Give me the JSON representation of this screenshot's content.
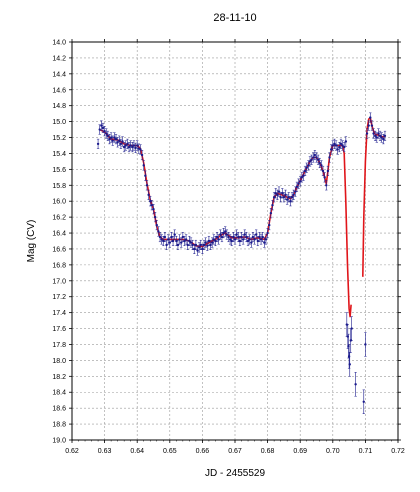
{
  "chart_data": {
    "type": "scatter",
    "title": "28-11-10",
    "xlabel": "JD - 2455529",
    "ylabel": "Mag (CV)",
    "xlim": [
      0.62,
      0.72
    ],
    "ylim": [
      19.0,
      14.0
    ],
    "y_inverted": true,
    "x_ticks": [
      "0.62",
      "0.63",
      "0.64",
      "0.65",
      "0.66",
      "0.67",
      "0.68",
      "0.69",
      "0.70",
      "0.71",
      "0.72"
    ],
    "y_ticks": [
      "14.0",
      "14.2",
      "14.4",
      "14.6",
      "14.8",
      "15.0",
      "15.2",
      "15.4",
      "15.6",
      "15.8",
      "16.0",
      "16.2",
      "16.4",
      "16.6",
      "16.8",
      "17.0",
      "17.2",
      "17.4",
      "17.6",
      "17.8",
      "18.0",
      "18.2",
      "18.4",
      "18.6",
      "18.8",
      "19.0"
    ],
    "grid": true,
    "series": [
      {
        "kind": "points_with_errorbars",
        "color": "#1a1a8c",
        "points": [
          [
            0.628,
            15.28
          ],
          [
            0.6285,
            15.1
          ],
          [
            0.629,
            15.05
          ],
          [
            0.6295,
            15.08
          ],
          [
            0.63,
            15.12
          ],
          [
            0.6305,
            15.15
          ],
          [
            0.631,
            15.18
          ],
          [
            0.6315,
            15.22
          ],
          [
            0.632,
            15.2
          ],
          [
            0.6325,
            15.24
          ],
          [
            0.633,
            15.2
          ],
          [
            0.6335,
            15.22
          ],
          [
            0.634,
            15.26
          ],
          [
            0.6345,
            15.24
          ],
          [
            0.635,
            15.28
          ],
          [
            0.6355,
            15.25
          ],
          [
            0.636,
            15.32
          ],
          [
            0.6365,
            15.3
          ],
          [
            0.637,
            15.28
          ],
          [
            0.6375,
            15.32
          ],
          [
            0.638,
            15.3
          ],
          [
            0.6385,
            15.32
          ],
          [
            0.639,
            15.3
          ],
          [
            0.6395,
            15.33
          ],
          [
            0.64,
            15.3
          ],
          [
            0.6405,
            15.34
          ],
          [
            0.641,
            15.35
          ],
          [
            0.6415,
            15.42
          ],
          [
            0.642,
            15.55
          ],
          [
            0.6425,
            15.68
          ],
          [
            0.643,
            15.8
          ],
          [
            0.6435,
            15.92
          ],
          [
            0.644,
            16.0
          ],
          [
            0.6445,
            16.05
          ],
          [
            0.645,
            16.1
          ],
          [
            0.6455,
            16.2
          ],
          [
            0.646,
            16.3
          ],
          [
            0.6465,
            16.38
          ],
          [
            0.647,
            16.45
          ],
          [
            0.6475,
            16.48
          ],
          [
            0.648,
            16.5
          ],
          [
            0.6485,
            16.45
          ],
          [
            0.649,
            16.55
          ],
          [
            0.6495,
            16.48
          ],
          [
            0.65,
            16.52
          ],
          [
            0.6505,
            16.45
          ],
          [
            0.651,
            16.5
          ],
          [
            0.6515,
            16.42
          ],
          [
            0.652,
            16.5
          ],
          [
            0.6525,
            16.55
          ],
          [
            0.653,
            16.48
          ],
          [
            0.6535,
            16.52
          ],
          [
            0.654,
            16.45
          ],
          [
            0.6545,
            16.5
          ],
          [
            0.655,
            16.48
          ],
          [
            0.6555,
            16.55
          ],
          [
            0.656,
            16.5
          ],
          [
            0.6565,
            16.52
          ],
          [
            0.657,
            16.55
          ],
          [
            0.6575,
            16.6
          ],
          [
            0.658,
            16.55
          ],
          [
            0.6585,
            16.62
          ],
          [
            0.659,
            16.58
          ],
          [
            0.6595,
            16.55
          ],
          [
            0.66,
            16.6
          ],
          [
            0.6605,
            16.55
          ],
          [
            0.661,
            16.52
          ],
          [
            0.6615,
            16.56
          ],
          [
            0.662,
            16.5
          ],
          [
            0.6625,
            16.55
          ],
          [
            0.663,
            16.52
          ],
          [
            0.6635,
            16.48
          ],
          [
            0.664,
            16.5
          ],
          [
            0.6645,
            16.45
          ],
          [
            0.665,
            16.48
          ],
          [
            0.6655,
            16.42
          ],
          [
            0.666,
            16.45
          ],
          [
            0.6665,
            16.4
          ],
          [
            0.667,
            16.38
          ],
          [
            0.6675,
            16.42
          ],
          [
            0.668,
            16.45
          ],
          [
            0.6685,
            16.48
          ],
          [
            0.669,
            16.5
          ],
          [
            0.6695,
            16.45
          ],
          [
            0.67,
            16.48
          ],
          [
            0.6705,
            16.42
          ],
          [
            0.671,
            16.45
          ],
          [
            0.6715,
            16.5
          ],
          [
            0.672,
            16.45
          ],
          [
            0.6725,
            16.48
          ],
          [
            0.673,
            16.42
          ],
          [
            0.6735,
            16.45
          ],
          [
            0.674,
            16.5
          ],
          [
            0.6745,
            16.48
          ],
          [
            0.675,
            16.52
          ],
          [
            0.6755,
            16.45
          ],
          [
            0.676,
            16.48
          ],
          [
            0.6765,
            16.42
          ],
          [
            0.677,
            16.5
          ],
          [
            0.6775,
            16.45
          ],
          [
            0.678,
            16.48
          ],
          [
            0.6785,
            16.45
          ],
          [
            0.679,
            16.52
          ],
          [
            0.6795,
            16.48
          ],
          [
            0.68,
            16.4
          ],
          [
            0.6805,
            16.3
          ],
          [
            0.681,
            16.15
          ],
          [
            0.6815,
            16.05
          ],
          [
            0.682,
            15.95
          ],
          [
            0.6825,
            15.9
          ],
          [
            0.683,
            15.92
          ],
          [
            0.6835,
            15.88
          ],
          [
            0.684,
            15.95
          ],
          [
            0.6845,
            15.9
          ],
          [
            0.685,
            15.95
          ],
          [
            0.6855,
            15.92
          ],
          [
            0.686,
            15.98
          ],
          [
            0.6865,
            15.95
          ],
          [
            0.687,
            16.0
          ],
          [
            0.6875,
            15.95
          ],
          [
            0.688,
            15.92
          ],
          [
            0.6885,
            15.88
          ],
          [
            0.689,
            15.82
          ],
          [
            0.6895,
            15.78
          ],
          [
            0.69,
            15.75
          ],
          [
            0.6905,
            15.7
          ],
          [
            0.691,
            15.68
          ],
          [
            0.6915,
            15.62
          ],
          [
            0.692,
            15.58
          ],
          [
            0.6925,
            15.55
          ],
          [
            0.693,
            15.5
          ],
          [
            0.6935,
            15.48
          ],
          [
            0.694,
            15.45
          ],
          [
            0.6945,
            15.42
          ],
          [
            0.695,
            15.45
          ],
          [
            0.6955,
            15.48
          ],
          [
            0.696,
            15.52
          ],
          [
            0.6965,
            15.55
          ],
          [
            0.697,
            15.62
          ],
          [
            0.6975,
            15.7
          ],
          [
            0.698,
            15.8
          ],
          [
            0.6985,
            15.62
          ],
          [
            0.699,
            15.45
          ],
          [
            0.6995,
            15.35
          ],
          [
            0.7,
            15.3
          ],
          [
            0.7005,
            15.28
          ],
          [
            0.701,
            15.3
          ],
          [
            0.7015,
            15.35
          ],
          [
            0.702,
            15.32
          ],
          [
            0.7025,
            15.28
          ],
          [
            0.703,
            15.3
          ],
          [
            0.7035,
            15.32
          ],
          [
            0.704,
            15.25
          ],
          [
            0.7043,
            17.55
          ],
          [
            0.7046,
            17.7
          ],
          [
            0.7048,
            17.82
          ],
          [
            0.705,
            17.95
          ],
          [
            0.7052,
            18.05
          ],
          [
            0.7055,
            17.75
          ],
          [
            0.7058,
            17.6
          ],
          [
            0.707,
            18.3
          ],
          [
            0.7095,
            18.52
          ],
          [
            0.71,
            17.8
          ],
          [
            0.7105,
            15.15
          ],
          [
            0.711,
            15.05
          ],
          [
            0.7115,
            14.95
          ],
          [
            0.712,
            15.05
          ],
          [
            0.7125,
            15.15
          ],
          [
            0.713,
            15.18
          ],
          [
            0.7135,
            15.2
          ],
          [
            0.714,
            15.15
          ],
          [
            0.7145,
            15.18
          ],
          [
            0.715,
            15.2
          ],
          [
            0.7155,
            15.22
          ],
          [
            0.716,
            15.18
          ]
        ]
      },
      {
        "kind": "fit_curve",
        "color": "#e0151a",
        "segments": [
          [
            [
              0.6285,
              15.1
            ],
            [
              0.63,
              15.13
            ],
            [
              0.632,
              15.22
            ],
            [
              0.634,
              15.23
            ],
            [
              0.636,
              15.28
            ],
            [
              0.638,
              15.3
            ],
            [
              0.64,
              15.3
            ],
            [
              0.641,
              15.34
            ],
            [
              0.642,
              15.52
            ],
            [
              0.643,
              15.78
            ],
            [
              0.644,
              15.98
            ],
            [
              0.645,
              16.1
            ],
            [
              0.646,
              16.32
            ],
            [
              0.647,
              16.45
            ],
            [
              0.648,
              16.48
            ],
            [
              0.65,
              16.48
            ],
            [
              0.652,
              16.48
            ],
            [
              0.654,
              16.48
            ],
            [
              0.656,
              16.5
            ],
            [
              0.658,
              16.56
            ],
            [
              0.66,
              16.57
            ],
            [
              0.662,
              16.52
            ],
            [
              0.664,
              16.48
            ],
            [
              0.666,
              16.42
            ],
            [
              0.667,
              16.4
            ],
            [
              0.669,
              16.46
            ],
            [
              0.671,
              16.46
            ],
            [
              0.673,
              16.45
            ],
            [
              0.675,
              16.48
            ],
            [
              0.677,
              16.46
            ],
            [
              0.679,
              16.48
            ],
            [
              0.68,
              16.4
            ],
            [
              0.681,
              16.15
            ],
            [
              0.682,
              15.95
            ],
            [
              0.683,
              15.9
            ],
            [
              0.685,
              15.93
            ],
            [
              0.687,
              15.97
            ],
            [
              0.688,
              15.92
            ],
            [
              0.689,
              15.82
            ],
            [
              0.69,
              15.74
            ],
            [
              0.691,
              15.66
            ],
            [
              0.692,
              15.58
            ],
            [
              0.693,
              15.5
            ],
            [
              0.694,
              15.45
            ],
            [
              0.695,
              15.45
            ],
            [
              0.696,
              15.52
            ],
            [
              0.697,
              15.62
            ],
            [
              0.698,
              15.78
            ],
            [
              0.6985,
              15.62
            ],
            [
              0.699,
              15.45
            ],
            [
              0.7,
              15.3
            ],
            [
              0.701,
              15.3
            ],
            [
              0.702,
              15.3
            ],
            [
              0.703,
              15.3
            ],
            [
              0.7035,
              15.4
            ],
            [
              0.704,
              16.0
            ],
            [
              0.7045,
              16.8
            ],
            [
              0.705,
              17.35
            ],
            [
              0.7053,
              17.45
            ],
            [
              0.7056,
              17.3
            ]
          ],
          [
            [
              0.7092,
              16.95
            ],
            [
              0.7095,
              16.2
            ],
            [
              0.71,
              15.5
            ],
            [
              0.7105,
              15.1
            ],
            [
              0.711,
              14.97
            ],
            [
              0.7115,
              14.95
            ],
            [
              0.712,
              15.05
            ],
            [
              0.7125,
              15.12
            ],
            [
              0.713,
              15.16
            ],
            [
              0.714,
              15.17
            ],
            [
              0.715,
              15.19
            ],
            [
              0.716,
              15.19
            ]
          ]
        ]
      }
    ]
  }
}
